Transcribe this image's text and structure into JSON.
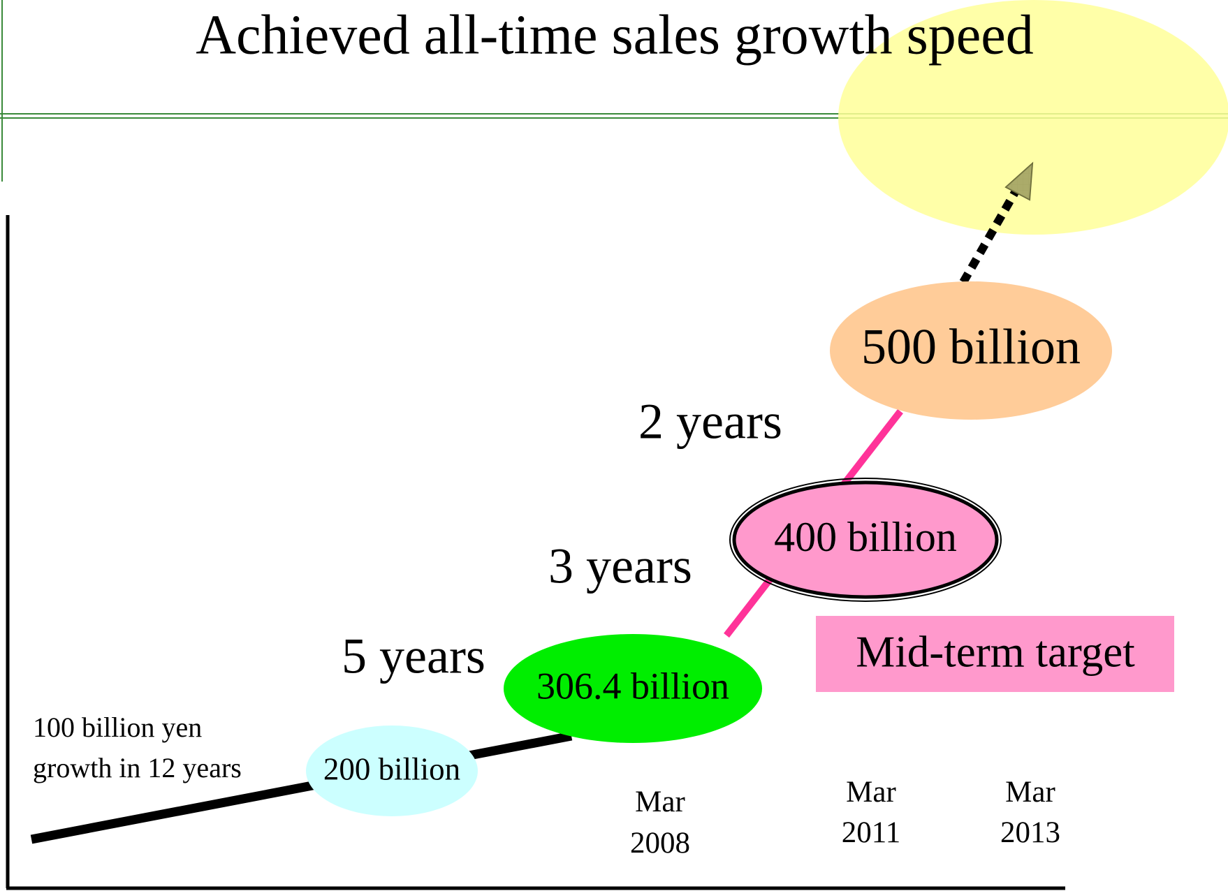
{
  "title": "Achieved all-time sales growth speed",
  "note": [
    "100 billion yen",
    "growth in 12 years"
  ],
  "milestones": [
    {
      "label": "200 billion"
    },
    {
      "label": "306.4 billion"
    },
    {
      "label": "400 billion"
    },
    {
      "label": "500 billion"
    }
  ],
  "durations": [
    "5 years",
    "3 years",
    "2 years"
  ],
  "dates": [
    [
      "Mar",
      "2008"
    ],
    [
      "Mar",
      "2011"
    ],
    [
      "Mar",
      "2013"
    ]
  ],
  "badge": "Mid-term target"
}
